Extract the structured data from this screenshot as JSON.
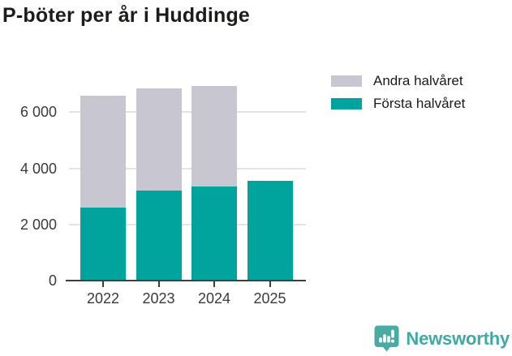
{
  "title": "P-böter per år i Huddinge",
  "legend": {
    "items": [
      {
        "label": "Andra halvåret",
        "color": "#c8c6d1"
      },
      {
        "label": "Första halvåret",
        "color": "#00a49c"
      }
    ]
  },
  "chart_data": {
    "type": "bar",
    "stacked": true,
    "title": "P-böter per år i Huddinge",
    "categories": [
      "2022",
      "2023",
      "2024",
      "2025"
    ],
    "series": [
      {
        "name": "Första halvåret",
        "color": "#00a49c",
        "values": [
          2600,
          3200,
          3350,
          3550
        ]
      },
      {
        "name": "Andra halvåret",
        "color": "#c8c6d1",
        "values": [
          4000,
          3650,
          3600,
          0
        ]
      }
    ],
    "totals": [
      6600,
      6850,
      6950,
      3550
    ],
    "xlabel": "",
    "ylabel": "",
    "ylim": [
      0,
      7200
    ],
    "yticks": [
      0,
      2000,
      4000,
      6000
    ],
    "ytick_labels": [
      "0",
      "2 000",
      "4 000",
      "6 000"
    ],
    "grid": "horizontal",
    "legend_position": "top-right"
  },
  "branding": {
    "name": "Newsworthy"
  }
}
